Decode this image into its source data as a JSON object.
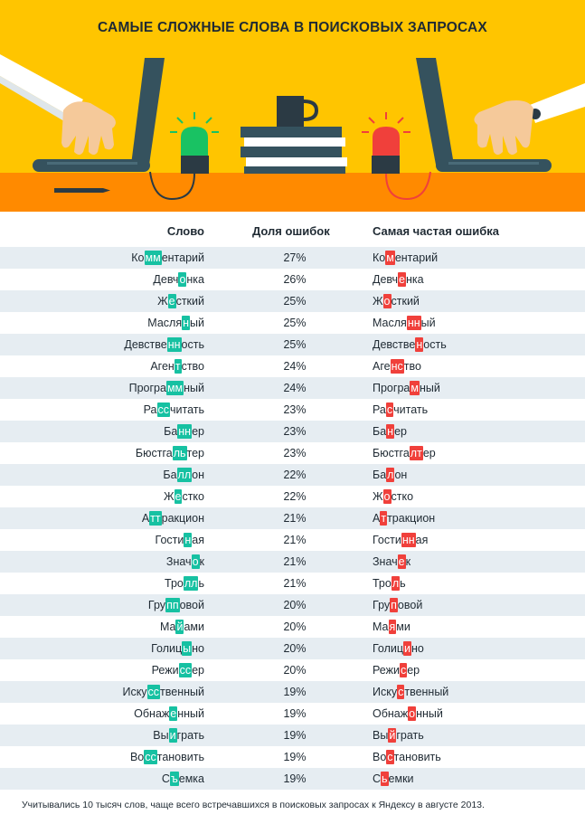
{
  "title": "САМЫЕ СЛОЖНЫЕ СЛОВА В ПОИСКОВЫХ ЗАПРОСАХ",
  "colors": {
    "banner_bg": "#ffc500",
    "desk": "#ff8a00",
    "correct_highlight": "#16c1a2",
    "error_highlight": "#f0403b",
    "row_stripe": "#e6edf2"
  },
  "table": {
    "headers": [
      "Слово",
      "Доля ошибок",
      "Самая частая ошибка"
    ],
    "rows": [
      {
        "word": [
          "Ко",
          "мм",
          "ентарий"
        ],
        "pct": "27%",
        "err": [
          "Ко",
          "м",
          "ентарий"
        ]
      },
      {
        "word": [
          "Девч",
          "о",
          "нка"
        ],
        "pct": "26%",
        "err": [
          "Девч",
          "е",
          "нка"
        ]
      },
      {
        "word": [
          "Ж",
          "е",
          "сткий"
        ],
        "pct": "25%",
        "err": [
          "Ж",
          "о",
          "сткий"
        ]
      },
      {
        "word": [
          "Масля",
          "н",
          "ый"
        ],
        "pct": "25%",
        "err": [
          "Масля",
          "нн",
          "ый"
        ]
      },
      {
        "word": [
          "Девстве",
          "нн",
          "ость"
        ],
        "pct": "25%",
        "err": [
          "Девстве",
          "н",
          "ость"
        ]
      },
      {
        "word": [
          "Аген",
          "т",
          "ство"
        ],
        "pct": "24%",
        "err": [
          "Аге",
          "нс",
          "тво"
        ]
      },
      {
        "word": [
          "Програ",
          "мм",
          "ный"
        ],
        "pct": "24%",
        "err": [
          "Програ",
          "м",
          "ный"
        ]
      },
      {
        "word": [
          "Ра",
          "сс",
          "читать"
        ],
        "pct": "23%",
        "err": [
          "Ра",
          "с",
          "читать"
        ]
      },
      {
        "word": [
          "Ба",
          "нн",
          "ер"
        ],
        "pct": "23%",
        "err": [
          "Ба",
          "н",
          "ер"
        ]
      },
      {
        "word": [
          "Бюстга",
          "ль",
          "тер"
        ],
        "pct": "23%",
        "err": [
          "Бюстга",
          "лт",
          "ер"
        ]
      },
      {
        "word": [
          "Ба",
          "лл",
          "он"
        ],
        "pct": "22%",
        "err": [
          "Ба",
          "л",
          "он"
        ]
      },
      {
        "word": [
          "Ж",
          "е",
          "стко"
        ],
        "pct": "22%",
        "err": [
          "Ж",
          "о",
          "стко"
        ]
      },
      {
        "word": [
          "А",
          "тт",
          "ракцион"
        ],
        "pct": "21%",
        "err": [
          "А",
          "т",
          "тракцион"
        ]
      },
      {
        "word": [
          "Гости",
          "н",
          "ая"
        ],
        "pct": "21%",
        "err": [
          "Гости",
          "нн",
          "ая"
        ]
      },
      {
        "word": [
          "Знач",
          "о",
          "к"
        ],
        "pct": "21%",
        "err": [
          "Знач",
          "е",
          "к"
        ]
      },
      {
        "word": [
          "Тро",
          "лл",
          "ь"
        ],
        "pct": "21%",
        "err": [
          "Тро",
          "л",
          "ь"
        ]
      },
      {
        "word": [
          "Гру",
          "пп",
          "овой"
        ],
        "pct": "20%",
        "err": [
          "Гру",
          "п",
          "овой"
        ]
      },
      {
        "word": [
          "Ма",
          "й",
          "ами"
        ],
        "pct": "20%",
        "err": [
          "Ма",
          "я",
          "ми"
        ]
      },
      {
        "word": [
          "Голиц",
          "ы",
          "но"
        ],
        "pct": "20%",
        "err": [
          "Голиц",
          "и",
          "но"
        ]
      },
      {
        "word": [
          "Режи",
          "сс",
          "ер"
        ],
        "pct": "20%",
        "err": [
          "Режи",
          "с",
          "ер"
        ]
      },
      {
        "word": [
          "Иску",
          "сс",
          "твенный"
        ],
        "pct": "19%",
        "err": [
          "Иску",
          "с",
          "твенный"
        ]
      },
      {
        "word": [
          "Обнаж",
          "е",
          "нный"
        ],
        "pct": "19%",
        "err": [
          "Обнаж",
          "о",
          "нный"
        ]
      },
      {
        "word": [
          "Вы",
          "и",
          "грать"
        ],
        "pct": "19%",
        "err": [
          "Вы",
          "й",
          "грать"
        ]
      },
      {
        "word": [
          "Во",
          "сс",
          "тановить"
        ],
        "pct": "19%",
        "err": [
          "Во",
          "с",
          "тановить"
        ]
      },
      {
        "word": [
          "С",
          "ъ",
          "емка"
        ],
        "pct": "19%",
        "err": [
          "С",
          "ь",
          "емки"
        ]
      }
    ]
  },
  "footnote": "Учитывались 10 тысяч слов, чаще всего встречавшихся в поисковых запросах к Яндексу в августе 2013."
}
